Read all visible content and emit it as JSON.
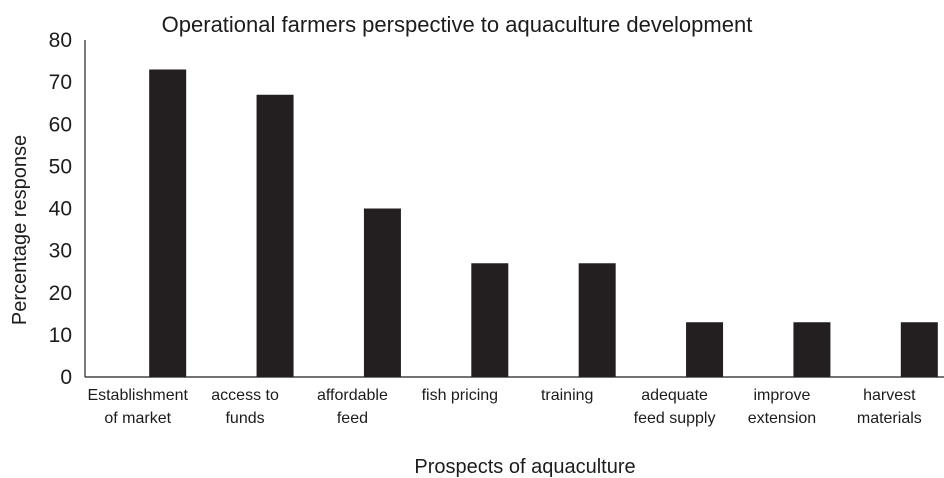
{
  "chart_data": {
    "type": "bar",
    "title": "Operational farmers perspective to aquaculture development",
    "xlabel": "Prospects of aquaculture",
    "ylabel": "Percentage response",
    "categories": [
      [
        "Establishment",
        "of market"
      ],
      [
        "access to",
        "funds"
      ],
      [
        "affordable",
        "feed"
      ],
      [
        "fish pricing"
      ],
      [
        "training"
      ],
      [
        "adequate",
        "feed supply"
      ],
      [
        "improve",
        "extension"
      ],
      [
        "harvest",
        "materials"
      ]
    ],
    "values": [
      73,
      67,
      40,
      27,
      27,
      13,
      13,
      13
    ],
    "ylim": [
      0,
      80
    ],
    "yticks": [
      "0",
      "10",
      "20",
      "30",
      "40",
      "50",
      "60",
      "70",
      "80"
    ],
    "grid": false,
    "legend": "none",
    "bar_color": "#231f20"
  }
}
